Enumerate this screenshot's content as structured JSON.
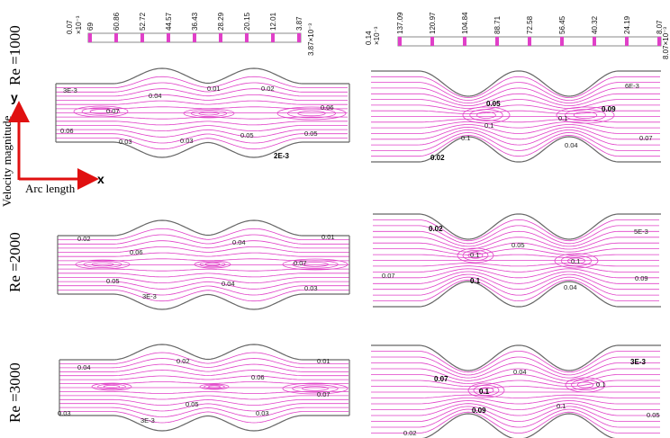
{
  "colors": {
    "streamline": "#e040c8",
    "wall": "#666666",
    "arrow": "#e01010"
  },
  "row_labels": [
    "Re =1000",
    "Re =2000",
    "Re =3000"
  ],
  "axis_labels": {
    "y": "Velocity magnitude",
    "y_arrow": "y",
    "x": "Arc length",
    "x_arrow": "x"
  },
  "colorbars": [
    {
      "min_label": "0.07",
      "min_exp": "×10⁻³",
      "ticks": [
        "69",
        "60.86",
        "52.72",
        "44.57",
        "36.43",
        "28.29",
        "20.15",
        "12.01",
        "3.87"
      ],
      "max_label": "3.87×10⁻³"
    },
    {
      "min_label": "0.14",
      "min_exp": "×10⁻³",
      "ticks": [
        "137.09",
        "120.97",
        "104.84",
        "88.71",
        "72.58",
        "56.45",
        "40.32",
        "24.19",
        "8.07"
      ],
      "max_label": "8.07×10⁻³"
    }
  ],
  "panels": {
    "p1000_left": [
      "3E-3",
      "0.04",
      "0.01",
      "0.02",
      "0.07",
      "0.06",
      "0.06",
      "0.03",
      "0.03",
      "0.05",
      "0.05",
      "2E-3"
    ],
    "p1000_right": [
      "6E-3",
      "0.05",
      "0.09",
      "0.1",
      "0.1",
      "0.1",
      "0.07",
      "0.04",
      "0.02"
    ],
    "p2000_left": [
      "0.02",
      "0.04",
      "0.01",
      "0.06",
      "0.07",
      "0.05",
      "0.04",
      "0.03",
      "3E-3"
    ],
    "p2000_right": [
      "0.02",
      "0.05",
      "5E-3",
      "0.1",
      "0.1",
      "0.07",
      "0.1",
      "0.04",
      "0.09"
    ],
    "p3000_left": [
      "0.04",
      "0.02",
      "0.01",
      "0.06",
      "0.07",
      "0.05",
      "0.03",
      "0.03",
      "3E-3"
    ],
    "p3000_right": [
      "3E-3",
      "0.04",
      "0.07",
      "0.1",
      "0.1",
      "0.1",
      "0.09",
      "0.05",
      "0.02"
    ]
  }
}
